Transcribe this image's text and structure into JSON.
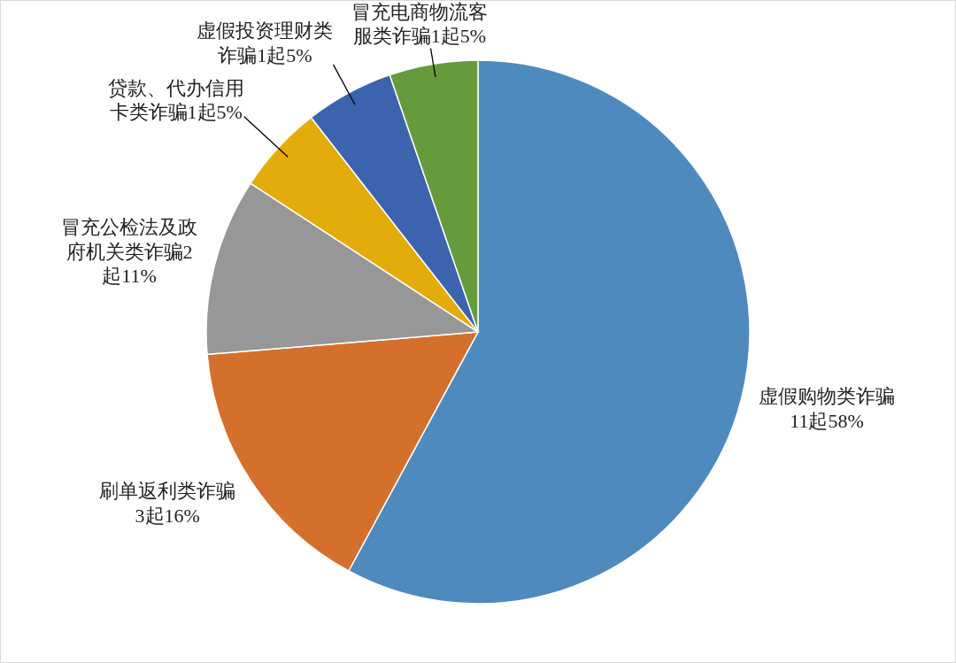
{
  "chart_data": {
    "type": "pie",
    "categories": [
      "虚假购物类诈骗",
      "刷单返利类诈骗",
      "冒充公检法及政府机关类诈骗",
      "贷款、代办信用卡类诈骗",
      "虚假投资理财类诈骗",
      "冒充电商物流客服类诈骗"
    ],
    "values": [
      11,
      3,
      2,
      1,
      1,
      1
    ],
    "value_labels": [
      "11起58%",
      "3起16%",
      "2起11%",
      "1起5%",
      "1起5%",
      "1起5%"
    ],
    "colors": [
      "#4e8abe",
      "#d5702c",
      "#979797",
      "#e4ac0a",
      "#3c63ad",
      "#659b3d"
    ]
  }
}
